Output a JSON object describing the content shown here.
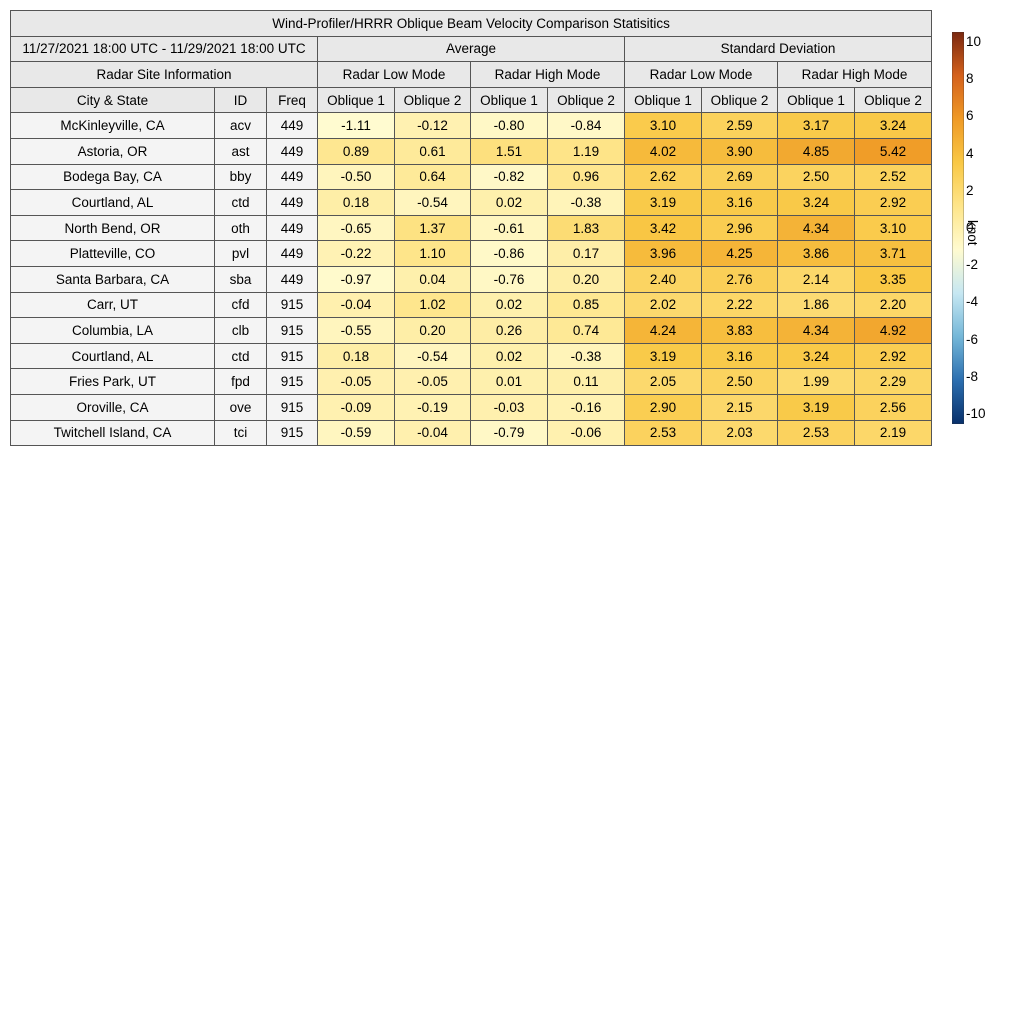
{
  "title": "Wind-Profiler/HRRR Oblique Beam Velocity Comparison Statisitics",
  "date_range": "11/27/2021 18:00 UTC - 11/29/2021 18:00 UTC",
  "group_headers": {
    "average": "Average",
    "std_dev": "Standard Deviation"
  },
  "radar_site_info": "Radar Site Information",
  "mode_headers": [
    "Radar Low Mode",
    "Radar High Mode",
    "Radar Low Mode",
    "Radar High Mode"
  ],
  "column_headers": {
    "city": "City & State",
    "id": "ID",
    "freq": "Freq",
    "beams": [
      "Oblique 1",
      "Oblique 2",
      "Oblique 1",
      "Oblique 2",
      "Oblique 1",
      "Oblique 2",
      "Oblique 1",
      "Oblique 2"
    ]
  },
  "colorbar": {
    "label": "knot",
    "min": -10,
    "max": 10,
    "ticks": [
      "10",
      "8",
      "6",
      "4",
      "2",
      "0",
      "-2",
      "-4",
      "-6",
      "-8",
      "-10"
    ],
    "colors": [
      "#08306b",
      "#2c6fb0",
      "#74b7d8",
      "#c6e7f2",
      "#fffbd0",
      "#fee58a",
      "#f9c845",
      "#ef9a26",
      "#d4611c",
      "#7a2810"
    ]
  },
  "chart_data": {
    "type": "table",
    "title": "Wind-Profiler/HRRR Oblique Beam Velocity Comparison Statisitics",
    "units": "knot",
    "rows": [
      {
        "city": "McKinleyville, CA",
        "id": "acv",
        "freq": "449",
        "values": [
          "-1.11",
          "-0.12",
          "-0.80",
          "-0.84",
          "3.10",
          "2.59",
          "3.17",
          "3.24"
        ]
      },
      {
        "city": "Astoria, OR",
        "id": "ast",
        "freq": "449",
        "values": [
          "0.89",
          "0.61",
          "1.51",
          "1.19",
          "4.02",
          "3.90",
          "4.85",
          "5.42"
        ]
      },
      {
        "city": "Bodega Bay, CA",
        "id": "bby",
        "freq": "449",
        "values": [
          "-0.50",
          "0.64",
          "-0.82",
          "0.96",
          "2.62",
          "2.69",
          "2.50",
          "2.52"
        ]
      },
      {
        "city": "Courtland, AL",
        "id": "ctd",
        "freq": "449",
        "values": [
          "0.18",
          "-0.54",
          "0.02",
          "-0.38",
          "3.19",
          "3.16",
          "3.24",
          "2.92"
        ]
      },
      {
        "city": "North Bend, OR",
        "id": "oth",
        "freq": "449",
        "values": [
          "-0.65",
          "1.37",
          "-0.61",
          "1.83",
          "3.42",
          "2.96",
          "4.34",
          "3.10"
        ]
      },
      {
        "city": "Platteville, CO",
        "id": "pvl",
        "freq": "449",
        "values": [
          "-0.22",
          "1.10",
          "-0.86",
          "0.17",
          "3.96",
          "4.25",
          "3.86",
          "3.71"
        ]
      },
      {
        "city": "Santa Barbara, CA",
        "id": "sba",
        "freq": "449",
        "values": [
          "-0.97",
          "0.04",
          "-0.76",
          "0.20",
          "2.40",
          "2.76",
          "2.14",
          "3.35"
        ]
      },
      {
        "city": "Carr, UT",
        "id": "cfd",
        "freq": "915",
        "values": [
          "-0.04",
          "1.02",
          "0.02",
          "0.85",
          "2.02",
          "2.22",
          "1.86",
          "2.20"
        ]
      },
      {
        "city": "Columbia, LA",
        "id": "clb",
        "freq": "915",
        "values": [
          "-0.55",
          "0.20",
          "0.26",
          "0.74",
          "4.24",
          "3.83",
          "4.34",
          "4.92"
        ]
      },
      {
        "city": "Courtland, AL",
        "id": "ctd",
        "freq": "915",
        "values": [
          "0.18",
          "-0.54",
          "0.02",
          "-0.38",
          "3.19",
          "3.16",
          "3.24",
          "2.92"
        ]
      },
      {
        "city": "Fries Park, UT",
        "id": "fpd",
        "freq": "915",
        "values": [
          "-0.05",
          "-0.05",
          "0.01",
          "0.11",
          "2.05",
          "2.50",
          "1.99",
          "2.29"
        ]
      },
      {
        "city": "Oroville, CA",
        "id": "ove",
        "freq": "915",
        "values": [
          "-0.09",
          "-0.19",
          "-0.03",
          "-0.16",
          "2.90",
          "2.15",
          "3.19",
          "2.56"
        ]
      },
      {
        "city": "Twitchell Island, CA",
        "id": "tci",
        "freq": "915",
        "values": [
          "-0.59",
          "-0.04",
          "-0.79",
          "-0.06",
          "2.53",
          "2.03",
          "2.53",
          "2.19"
        ]
      }
    ]
  }
}
